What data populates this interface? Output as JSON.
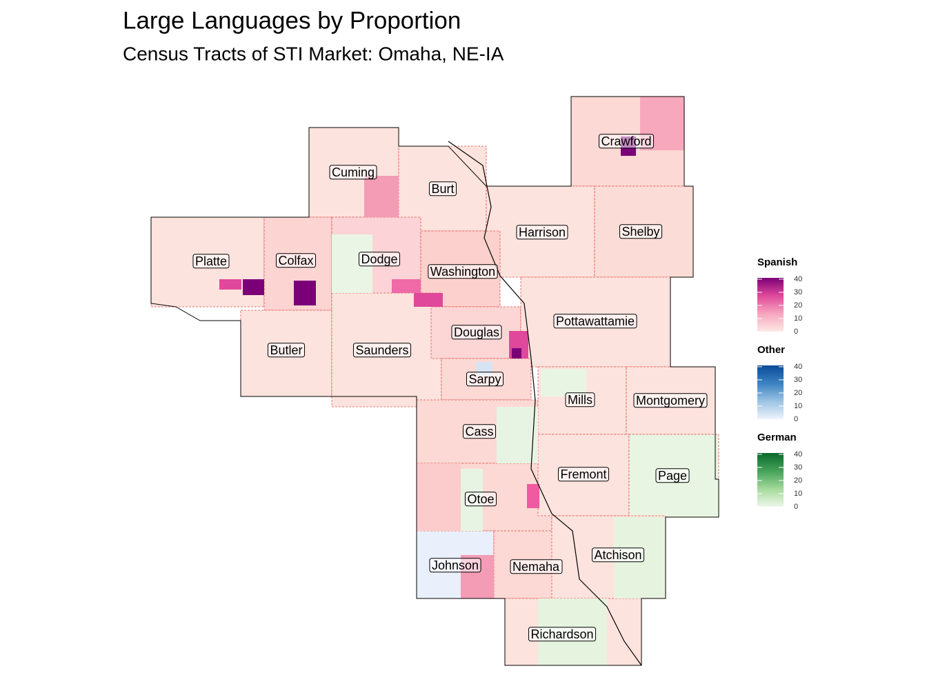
{
  "title": "Large Languages by Proportion",
  "subtitle": "Census Tracts of STI Market: Omaha, NE-IA",
  "counties": [
    "Cuming",
    "Burt",
    "Crawford",
    "Harrison",
    "Shelby",
    "Platte",
    "Colfax",
    "Dodge",
    "Washington",
    "Butler",
    "Saunders",
    "Douglas",
    "Pottawattamie",
    "Sarpy",
    "Cass",
    "Mills",
    "Montgomery",
    "Otoe",
    "Fremont",
    "Page",
    "Johnson",
    "Nemaha",
    "Atchison",
    "Richardson"
  ],
  "legends": [
    {
      "title": "Spanish",
      "lim": [
        0,
        41
      ],
      "ticks": [
        0,
        10,
        20,
        30,
        40
      ],
      "colors": [
        "#fde9e4",
        "#f7a6bf",
        "#e0489b",
        "#7b0077"
      ]
    },
    {
      "title": "Other",
      "lim": [
        0,
        41
      ],
      "ticks": [
        0,
        10,
        20,
        30,
        40
      ],
      "colors": [
        "#eef3fb",
        "#9cc3e3",
        "#3a82c2",
        "#0b4a97"
      ]
    },
    {
      "title": "German",
      "lim": [
        0,
        41
      ],
      "ticks": [
        0,
        10,
        20,
        30,
        40
      ],
      "colors": [
        "#edf7e9",
        "#a4d99b",
        "#44a25a",
        "#0a6a2c"
      ]
    }
  ]
}
